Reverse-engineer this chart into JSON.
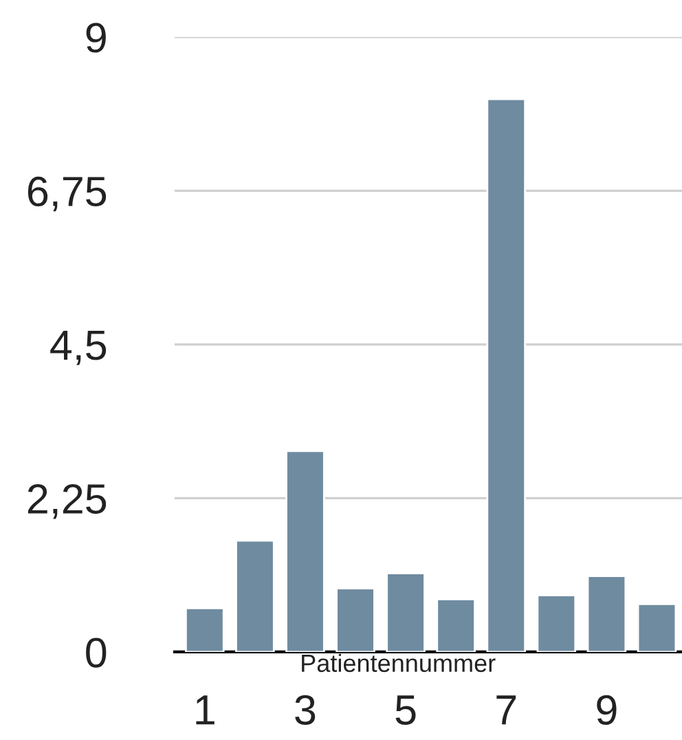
{
  "chart_data": {
    "type": "bar",
    "xlabel": "Patientennummer",
    "categories": [
      "1",
      null,
      "3",
      null,
      "5",
      null,
      "7",
      null,
      "9",
      null
    ],
    "values": [
      0.64,
      1.63,
      2.94,
      0.93,
      1.15,
      0.77,
      8.09,
      0.83,
      1.11,
      0.7
    ],
    "color": "#6f8ba0",
    "ylim": [
      0,
      9
    ],
    "yticks": [
      0,
      {
        "value": 2.25,
        "label": "2,25"
      },
      {
        "value": 4.5,
        "label": "4,5"
      },
      {
        "value": 6.75,
        "label": "6,75"
      },
      9
    ],
    "grid": "y",
    "legend": false
  }
}
